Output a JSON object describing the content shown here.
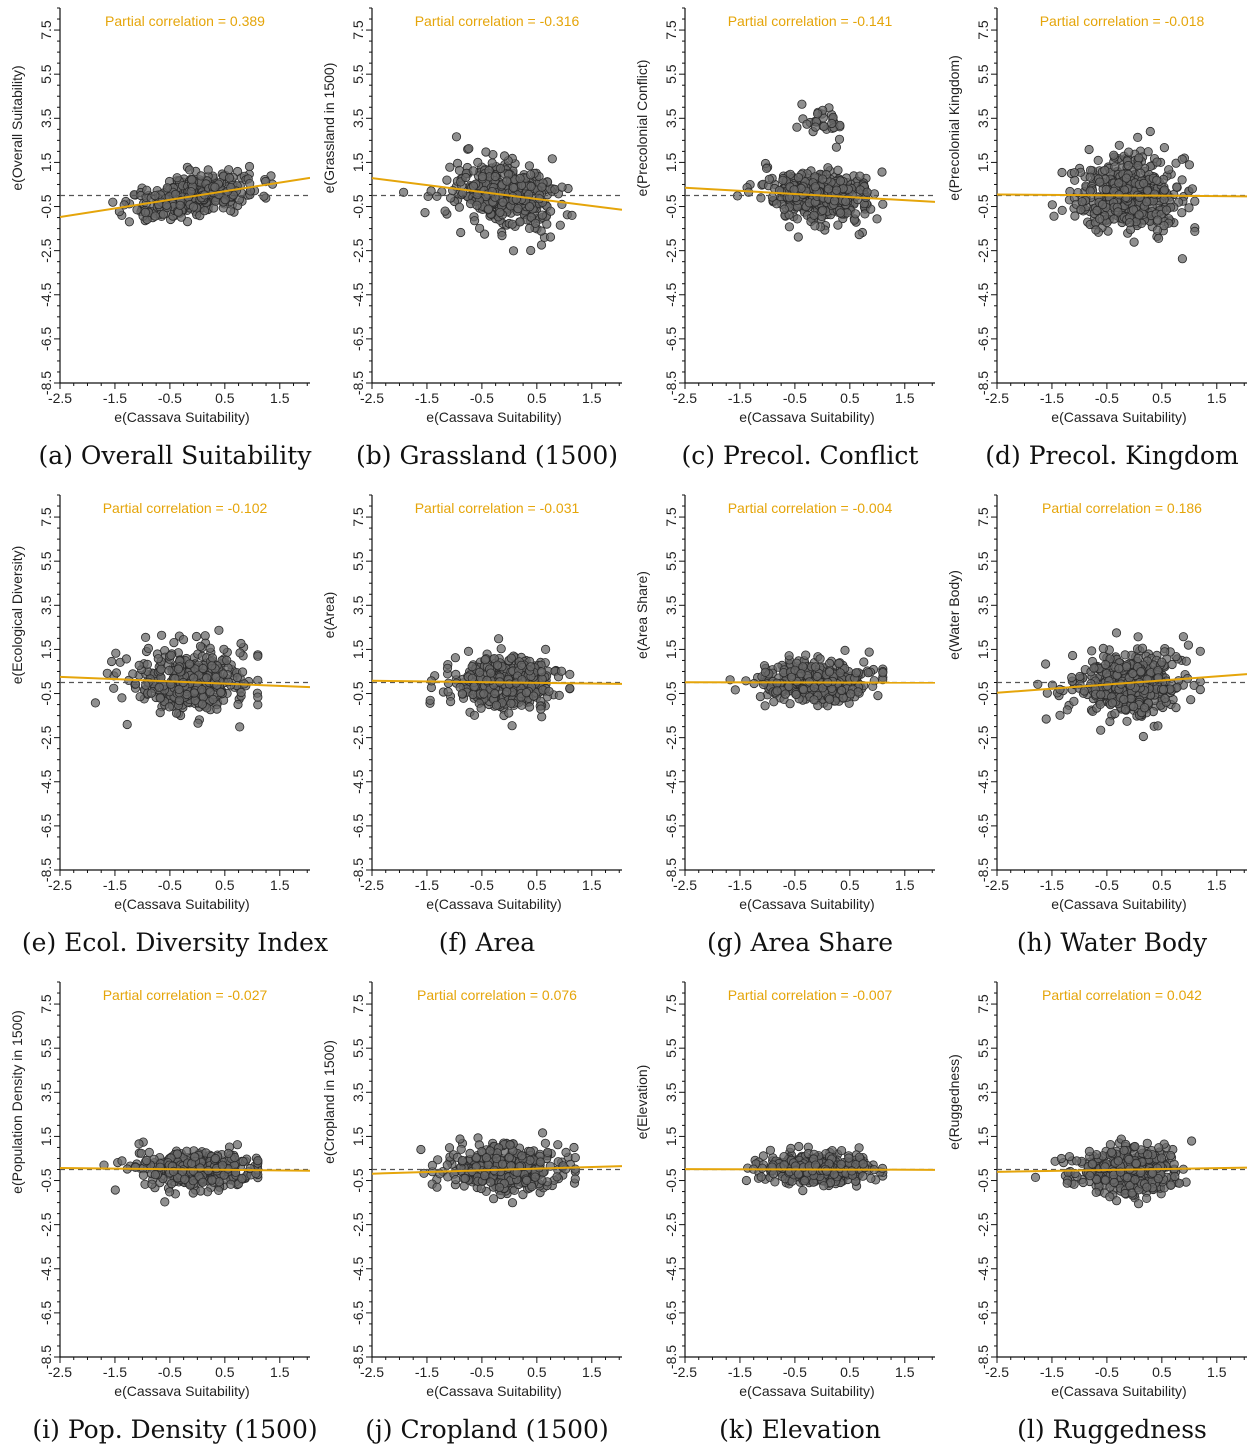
{
  "chart_data": [
    {
      "type": "scatter",
      "caption": "(a) Overall Suitability",
      "annotation": "Partial correlation = 0.389",
      "slope": 0.389,
      "xlabel": "e(Cassava Suitability)",
      "ylabel": "e(Overall Suitability)",
      "xlim": [
        -2.5,
        2.05
      ],
      "ylim": [
        -8.5,
        8.5
      ],
      "xticks": [
        "-2.5",
        "-1.5",
        "-0.5",
        "0.5",
        "1.5"
      ],
      "yticks": [
        "-8.5",
        "-6.5",
        "-4.5",
        "-2.5",
        "-0.5",
        "1.5",
        "3.5",
        "5.5",
        "7.5"
      ],
      "cloud": {
        "y_sd": 0.45,
        "extra_up": 0,
        "x_min": -1.9,
        "x_max": 1.4
      }
    },
    {
      "type": "scatter",
      "caption": "(b) Grassland (1500)",
      "annotation": "Partial correlation = -0.316",
      "slope": -0.316,
      "xlabel": "e(Cassava Suitability)",
      "ylabel": "e(Grassland in 1500)",
      "xlim": [
        -2.5,
        2.05
      ],
      "ylim": [
        -8.5,
        8.5
      ],
      "xticks": [
        "-2.5",
        "-1.5",
        "-0.5",
        "0.5",
        "1.5"
      ],
      "yticks": [
        "-8.5",
        "-6.5",
        "-4.5",
        "-2.5",
        "-0.5",
        "1.5",
        "3.5",
        "5.5",
        "7.5"
      ],
      "cloud": {
        "y_sd": 0.75,
        "extra_up": 0,
        "x_min": -2.0,
        "x_max": 1.2
      }
    },
    {
      "type": "scatter",
      "caption": "(c) Precol. Conflict",
      "annotation": "Partial correlation = -0.141",
      "slope": -0.141,
      "xlabel": "e(Cassava Suitability)",
      "ylabel": "e(Precolonial Conflict)",
      "xlim": [
        -2.5,
        2.05
      ],
      "ylim": [
        -8.5,
        8.5
      ],
      "xticks": [
        "-2.5",
        "-1.5",
        "-0.5",
        "0.5",
        "1.5"
      ],
      "yticks": [
        "-8.5",
        "-6.5",
        "-4.5",
        "-2.5",
        "-0.5",
        "1.5",
        "3.5",
        "5.5",
        "7.5"
      ],
      "cloud": {
        "y_sd": 0.55,
        "extra_up": 1,
        "x_min": -1.9,
        "x_max": 1.1
      }
    },
    {
      "type": "scatter",
      "caption": "(d) Precol. Kingdom",
      "annotation": "Partial correlation = -0.018",
      "slope": -0.018,
      "xlabel": "e(Cassava Suitability)",
      "ylabel": "e(Precolonial Kingdom)",
      "xlim": [
        -2.5,
        2.05
      ],
      "ylim": [
        -8.5,
        8.5
      ],
      "xticks": [
        "-2.5",
        "-1.5",
        "-0.5",
        "0.5",
        "1.5"
      ],
      "yticks": [
        "-8.5",
        "-6.5",
        "-4.5",
        "-2.5",
        "-0.5",
        "1.5",
        "3.5",
        "5.5",
        "7.5"
      ],
      "cloud": {
        "y_sd": 0.85,
        "extra_up": 0,
        "x_min": -1.9,
        "x_max": 1.1
      }
    },
    {
      "type": "scatter",
      "caption": "(e) Ecol. Diversity Index",
      "annotation": "Partial correlation = -0.102",
      "slope": -0.102,
      "xlabel": "e(Cassava Suitability)",
      "ylabel": "e(Ecological Diversity)",
      "xlim": [
        -2.5,
        2.05
      ],
      "ylim": [
        -8.5,
        8.5
      ],
      "xticks": [
        "-2.5",
        "-1.5",
        "-0.5",
        "0.5",
        "1.5"
      ],
      "yticks": [
        "-8.5",
        "-6.5",
        "-4.5",
        "-2.5",
        "-0.5",
        "1.5",
        "3.5",
        "5.5",
        "7.5"
      ],
      "cloud": {
        "y_sd": 0.75,
        "extra_up": 0,
        "x_min": -1.9,
        "x_max": 1.1
      }
    },
    {
      "type": "scatter",
      "caption": "(f) Area",
      "annotation": "Partial correlation = -0.031",
      "slope": -0.031,
      "xlabel": "e(Cassava Suitability)",
      "ylabel": "e(Area)",
      "xlim": [
        -2.5,
        2.05
      ],
      "ylim": [
        -8.5,
        8.5
      ],
      "xticks": [
        "-2.5",
        "-1.5",
        "-0.5",
        "0.5",
        "1.5"
      ],
      "yticks": [
        "-8.5",
        "-6.5",
        "-4.5",
        "-2.5",
        "-0.5",
        "1.5",
        "3.5",
        "5.5",
        "7.5"
      ],
      "cloud": {
        "y_sd": 0.55,
        "extra_up": 0,
        "x_min": -1.9,
        "x_max": 1.1
      }
    },
    {
      "type": "scatter",
      "caption": "(g) Area Share",
      "annotation": "Partial correlation = -0.004",
      "slope": -0.004,
      "xlabel": "e(Cassava Suitability)",
      "ylabel": "e(Area Share)",
      "xlim": [
        -2.5,
        2.05
      ],
      "ylim": [
        -8.5,
        8.5
      ],
      "xticks": [
        "-2.5",
        "-1.5",
        "-0.5",
        "0.5",
        "1.5"
      ],
      "yticks": [
        "-8.5",
        "-6.5",
        "-4.5",
        "-2.5",
        "-0.5",
        "1.5",
        "3.5",
        "5.5",
        "7.5"
      ],
      "cloud": {
        "y_sd": 0.45,
        "extra_up": 0,
        "x_min": -1.8,
        "x_max": 1.1
      }
    },
    {
      "type": "scatter",
      "caption": "(h) Water Body",
      "annotation": "Partial correlation = 0.186",
      "slope": 0.186,
      "xlabel": "e(Cassava Suitability)",
      "ylabel": "e(Water Body)",
      "xlim": [
        -2.5,
        2.05
      ],
      "ylim": [
        -8.5,
        8.5
      ],
      "xticks": [
        "-2.5",
        "-1.5",
        "-0.5",
        "0.5",
        "1.5"
      ],
      "yticks": [
        "-8.5",
        "-6.5",
        "-4.5",
        "-2.5",
        "-0.5",
        "1.5",
        "3.5",
        "5.5",
        "7.5"
      ],
      "cloud": {
        "y_sd": 0.75,
        "extra_up": 0,
        "x_min": -1.8,
        "x_max": 1.2
      }
    },
    {
      "type": "scatter",
      "caption": "(i) Pop. Density (1500)",
      "annotation": "Partial correlation = -0.027",
      "slope": -0.027,
      "xlabel": "e(Cassava Suitability)",
      "ylabel": "e(Population Density in 1500)",
      "xlim": [
        -2.5,
        2.05
      ],
      "ylim": [
        -8.5,
        8.5
      ],
      "xticks": [
        "-2.5",
        "-1.5",
        "-0.5",
        "0.5",
        "1.5"
      ],
      "yticks": [
        "-8.5",
        "-6.5",
        "-4.5",
        "-2.5",
        "-0.5",
        "1.5",
        "3.5",
        "5.5",
        "7.5"
      ],
      "cloud": {
        "y_sd": 0.4,
        "extra_up": 0,
        "x_min": -1.7,
        "x_max": 1.1
      }
    },
    {
      "type": "scatter",
      "caption": "(j) Cropland (1500)",
      "annotation": "Partial correlation = 0.076",
      "slope": 0.076,
      "xlabel": "e(Cassava Suitability)",
      "ylabel": "e(Cropland in 1500)",
      "xlim": [
        -2.5,
        2.05
      ],
      "ylim": [
        -8.5,
        8.5
      ],
      "xticks": [
        "-2.5",
        "-1.5",
        "-0.5",
        "0.5",
        "1.5"
      ],
      "yticks": [
        "-8.5",
        "-6.5",
        "-4.5",
        "-2.5",
        "-0.5",
        "1.5",
        "3.5",
        "5.5",
        "7.5"
      ],
      "cloud": {
        "y_sd": 0.55,
        "extra_up": 0,
        "x_min": -1.8,
        "x_max": 1.2
      }
    },
    {
      "type": "scatter",
      "caption": "(k) Elevation",
      "annotation": "Partial correlation = -0.007",
      "slope": -0.007,
      "xlabel": "e(Cassava Suitability)",
      "ylabel": "e(Elevation)",
      "xlim": [
        -2.5,
        2.05
      ],
      "ylim": [
        -8.5,
        8.5
      ],
      "xticks": [
        "-2.5",
        "-1.5",
        "-0.5",
        "0.5",
        "1.5"
      ],
      "yticks": [
        "-8.5",
        "-6.5",
        "-4.5",
        "-2.5",
        "-0.5",
        "1.5",
        "3.5",
        "5.5",
        "7.5"
      ],
      "cloud": {
        "y_sd": 0.35,
        "extra_up": 0,
        "x_min": -1.8,
        "x_max": 1.1
      }
    },
    {
      "type": "scatter",
      "caption": "(l) Ruggedness",
      "annotation": "Partial correlation = 0.042",
      "slope": 0.042,
      "xlabel": "e(Cassava Suitability)",
      "ylabel": "e(Ruggedness)",
      "xlim": [
        -2.5,
        2.05
      ],
      "ylim": [
        -8.5,
        8.5
      ],
      "xticks": [
        "-2.5",
        "-1.5",
        "-0.5",
        "0.5",
        "1.5"
      ],
      "yticks": [
        "-8.5",
        "-6.5",
        "-4.5",
        "-2.5",
        "-0.5",
        "1.5",
        "3.5",
        "5.5",
        "7.5"
      ],
      "cloud": {
        "y_sd": 0.5,
        "extra_up": 0,
        "x_min": -1.8,
        "x_max": 1.1
      }
    }
  ],
  "colors": {
    "fit_line": "#E5A50A",
    "annotation": "#E5A50A",
    "zero_line": "#555555",
    "point_fill": "#6a6a6a",
    "point_stroke": "#2a2a2a",
    "axis": "#111111"
  }
}
